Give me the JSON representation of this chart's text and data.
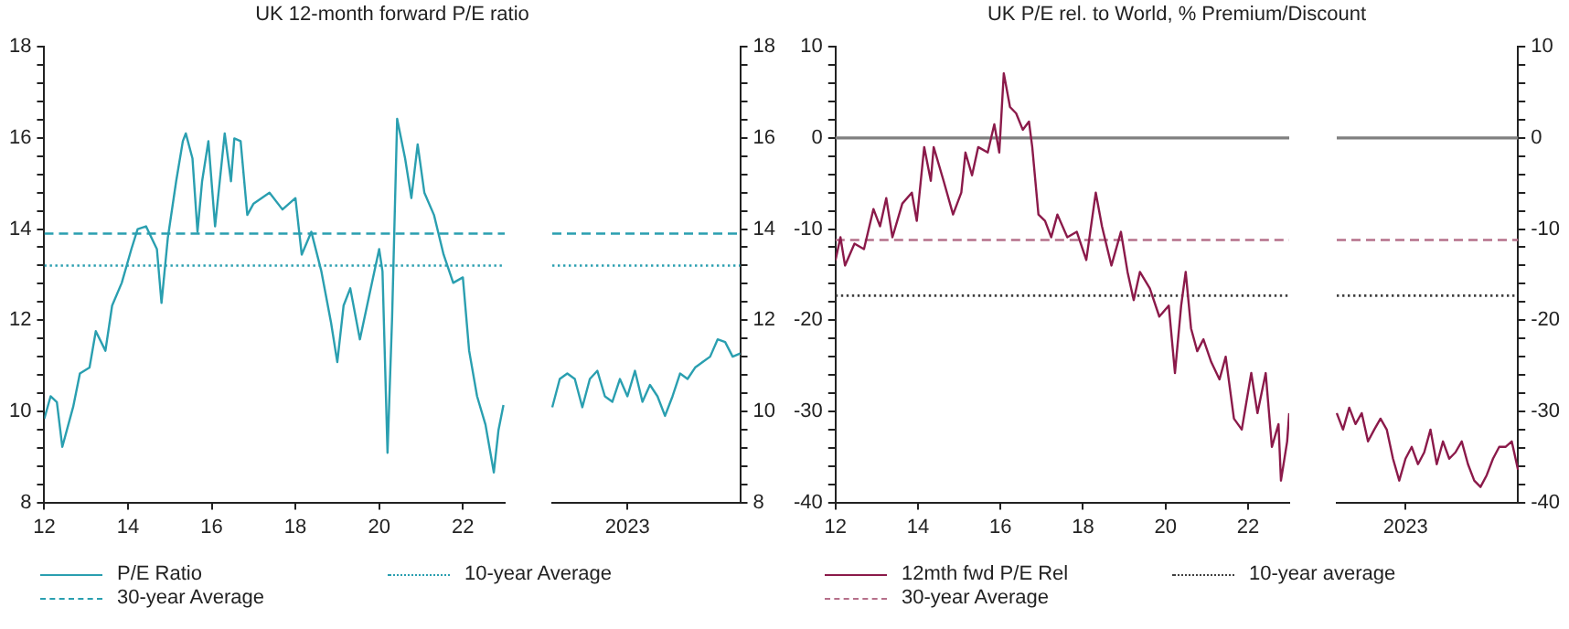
{
  "chart_data": [
    {
      "type": "line",
      "title": "UK 12-month forward P/E ratio",
      "legend": "bottom",
      "xlim": [
        2012,
        2023
      ],
      "xticks": [
        {
          "value": 2012,
          "label": "12"
        },
        {
          "value": 2014,
          "label": "14"
        },
        {
          "value": 2016,
          "label": "16"
        },
        {
          "value": 2018,
          "label": "18"
        },
        {
          "value": 2020,
          "label": "20"
        },
        {
          "value": 2022,
          "label": "22"
        }
      ],
      "ylim": [
        8,
        18
      ],
      "yticks": [
        8,
        {
          "value": 8.4,
          "label": null
        },
        {
          "value": 8.8,
          "label": null
        },
        {
          "value": 9.2,
          "label": null
        },
        {
          "value": 9.6,
          "label": null
        },
        10,
        {
          "value": 10.4,
          "label": null
        },
        {
          "value": 10.8,
          "label": null
        },
        {
          "value": 11.2,
          "label": null
        },
        {
          "value": 11.6,
          "label": null
        },
        12,
        {
          "value": 12.4,
          "label": null
        },
        {
          "value": 12.8,
          "label": null
        },
        {
          "value": 13.2,
          "label": null
        },
        {
          "value": 13.6,
          "label": null
        },
        14,
        {
          "value": 14.4,
          "label": null
        },
        {
          "value": 14.8,
          "label": null
        },
        {
          "value": 15.2,
          "label": null
        },
        {
          "value": 15.6,
          "label": null
        },
        16,
        {
          "value": 16.4,
          "label": null
        },
        {
          "value": 16.8,
          "label": null
        },
        {
          "value": 17.2,
          "label": null
        },
        {
          "value": 17.6,
          "label": null
        },
        18
      ],
      "series": [
        {
          "name": "P/E Ratio",
          "color": "#2a9fb0",
          "line_style": "solid",
          "x": [
            2012.0,
            2012.15,
            2012.3,
            2012.43,
            2012.69,
            2012.85,
            2013.08,
            2013.23,
            2013.46,
            2013.62,
            2013.85,
            2014.08,
            2014.23,
            2014.43,
            2014.69,
            2014.8,
            2014.95,
            2015.15,
            2015.31,
            2015.38,
            2015.54,
            2015.66,
            2015.77,
            2015.92,
            2016.08,
            2016.31,
            2016.46,
            2016.54,
            2016.69,
            2016.85,
            2017.0,
            2017.38,
            2017.69,
            2018.0,
            2018.15,
            2018.38,
            2018.62,
            2018.85,
            2019.0,
            2019.15,
            2019.31,
            2019.54,
            2019.77,
            2020.0,
            2020.08,
            2020.2,
            2020.31,
            2020.43,
            2020.62,
            2020.77,
            2020.92,
            2021.08,
            2021.31,
            2021.54,
            2021.77,
            2022.0,
            2022.15,
            2022.34,
            2022.54,
            2022.74,
            2022.85,
            2022.97
          ],
          "values": [
            9.84,
            10.33,
            10.2,
            9.22,
            10.1,
            10.83,
            10.96,
            11.76,
            11.33,
            12.32,
            12.82,
            13.56,
            14.0,
            14.06,
            13.56,
            12.38,
            13.8,
            15.05,
            15.93,
            16.1,
            15.55,
            13.94,
            15.05,
            15.93,
            14.06,
            16.1,
            15.05,
            15.99,
            15.93,
            14.31,
            14.56,
            14.8,
            14.43,
            14.68,
            13.44,
            13.94,
            13.07,
            11.95,
            11.08,
            12.32,
            12.7,
            11.58,
            12.57,
            13.56,
            13.07,
            9.09,
            12.07,
            16.42,
            15.55,
            14.68,
            15.86,
            14.8,
            14.31,
            13.44,
            12.82,
            12.94,
            11.33,
            10.33,
            9.71,
            8.66,
            9.58,
            10.14
          ]
        },
        {
          "name": "10-year Average",
          "color": "#2a9fb0",
          "line_style": "dotted",
          "x": [
            2012,
            2023
          ],
          "values": [
            13.2,
            13.2
          ]
        },
        {
          "name": "30-year Average",
          "color": "#2a9fb0",
          "line_style": "dashed",
          "x": [
            2012,
            2023
          ],
          "values": [
            13.9,
            13.9
          ]
        }
      ]
    },
    {
      "type": "line",
      "categories": [
        null,
        null,
        null,
        null,
        null,
        null,
        null,
        null,
        null,
        null,
        "2023",
        null,
        null,
        null,
        null,
        null,
        null,
        null,
        null,
        null,
        null,
        null,
        null,
        null,
        null,
        null
      ],
      "ylim": [
        8,
        18
      ],
      "yticks": [
        8,
        {
          "value": 8.4,
          "label": null
        },
        {
          "value": 8.8,
          "label": null
        },
        {
          "value": 9.2,
          "label": null
        },
        {
          "value": 9.6,
          "label": null
        },
        10,
        {
          "value": 10.4,
          "label": null
        },
        {
          "value": 10.8,
          "label": null
        },
        {
          "value": 11.2,
          "label": null
        },
        {
          "value": 11.6,
          "label": null
        },
        12,
        {
          "value": 12.4,
          "label": null
        },
        {
          "value": 12.8,
          "label": null
        },
        {
          "value": 13.2,
          "label": null
        },
        {
          "value": 13.6,
          "label": null
        },
        14,
        {
          "value": 14.4,
          "label": null
        },
        {
          "value": 14.8,
          "label": null
        },
        {
          "value": 15.2,
          "label": null
        },
        {
          "value": 15.6,
          "label": null
        },
        16,
        {
          "value": 16.4,
          "label": null
        },
        {
          "value": 16.8,
          "label": null
        },
        {
          "value": 17.2,
          "label": null
        },
        {
          "value": 17.6,
          "label": null
        },
        18
      ],
      "series": [
        {
          "color": "#2a9fb0",
          "line_style": "solid",
          "values": [
            10.09,
            10.71,
            10.83,
            10.71,
            10.09,
            10.71,
            10.89,
            10.33,
            10.21,
            10.71,
            10.33,
            10.89,
            10.21,
            10.58,
            10.33,
            9.9,
            10.33,
            10.83,
            10.71,
            10.96,
            11.08,
            11.2,
            11.58,
            11.52,
            11.2,
            11.27
          ]
        },
        {
          "color": "#2a9fb0",
          "line_style": "dotted",
          "values": [
            13.2,
            13.2,
            13.2,
            13.2,
            13.2,
            13.2,
            13.2,
            13.2,
            13.2,
            13.2,
            13.2,
            13.2,
            13.2,
            13.2,
            13.2,
            13.2,
            13.2,
            13.2,
            13.2,
            13.2,
            13.2,
            13.2,
            13.2,
            13.2,
            13.2,
            13.2
          ]
        },
        {
          "color": "#2a9fb0",
          "line_style": "dashed",
          "values": [
            13.9,
            13.9,
            13.9,
            13.9,
            13.9,
            13.9,
            13.9,
            13.9,
            13.9,
            13.9,
            13.9,
            13.9,
            13.9,
            13.9,
            13.9,
            13.9,
            13.9,
            13.9,
            13.9,
            13.9,
            13.9,
            13.9,
            13.9,
            13.9,
            13.9,
            13.9
          ]
        }
      ]
    },
    {
      "type": "line",
      "title": "UK P/E rel. to World, % Premium/Discount",
      "legend": "bottom",
      "xlim": [
        2012,
        2023
      ],
      "xticks": [
        {
          "value": 2012,
          "label": "12"
        },
        {
          "value": 2014,
          "label": "14"
        },
        {
          "value": 2016,
          "label": "16"
        },
        {
          "value": 2018,
          "label": "18"
        },
        {
          "value": 2020,
          "label": "20"
        },
        {
          "value": 2022,
          "label": "22"
        }
      ],
      "ylim": [
        -40,
        10
      ],
      "yticks": [
        -40,
        {
          "value": -38,
          "label": null
        },
        {
          "value": -36,
          "label": null
        },
        {
          "value": -34,
          "label": null
        },
        {
          "value": -32,
          "label": null
        },
        -30,
        {
          "value": -28,
          "label": null
        },
        {
          "value": -26,
          "label": null
        },
        {
          "value": -24,
          "label": null
        },
        {
          "value": -22,
          "label": null
        },
        -20,
        {
          "value": -18,
          "label": null
        },
        {
          "value": -16,
          "label": null
        },
        {
          "value": -14,
          "label": null
        },
        {
          "value": -12,
          "label": null
        },
        -10,
        {
          "value": -8,
          "label": null
        },
        {
          "value": -6,
          "label": null
        },
        {
          "value": -4,
          "label": null
        },
        {
          "value": -2,
          "label": null
        },
        0,
        {
          "value": 2,
          "label": null
        },
        {
          "value": 4,
          "label": null
        },
        {
          "value": 6,
          "label": null
        },
        {
          "value": 8,
          "label": null
        },
        10
      ],
      "ref_lines": [
        {
          "axis": "y",
          "value": 0,
          "color": "#7f7f7f",
          "line_style": "solid"
        }
      ],
      "series": [
        {
          "name": "12mth fwd P/E Rel",
          "color": "#8b1a4a",
          "line_style": "solid",
          "x": [
            2012.0,
            2012.12,
            2012.23,
            2012.46,
            2012.69,
            2012.92,
            2013.08,
            2013.23,
            2013.38,
            2013.62,
            2013.85,
            2013.97,
            2014.15,
            2014.31,
            2014.38,
            2014.62,
            2014.85,
            2015.05,
            2015.15,
            2015.31,
            2015.46,
            2015.69,
            2015.85,
            2015.97,
            2016.08,
            2016.23,
            2016.38,
            2016.54,
            2016.69,
            2016.77,
            2016.92,
            2017.08,
            2017.23,
            2017.38,
            2017.62,
            2017.85,
            2018.08,
            2018.31,
            2018.46,
            2018.69,
            2018.92,
            2019.08,
            2019.23,
            2019.38,
            2019.62,
            2019.85,
            2020.08,
            2020.23,
            2020.38,
            2020.49,
            2020.62,
            2020.77,
            2020.92,
            2021.11,
            2021.31,
            2021.46,
            2021.66,
            2021.85,
            2022.08,
            2022.23,
            2022.43,
            2022.58,
            2022.74,
            2022.8,
            2022.95,
            2023.0
          ],
          "values": [
            -13.4,
            -10.9,
            -14.0,
            -11.6,
            -12.2,
            -7.8,
            -9.7,
            -6.6,
            -10.9,
            -7.2,
            -6.0,
            -9.1,
            -1.0,
            -4.7,
            -1.0,
            -4.7,
            -8.4,
            -6.0,
            -1.6,
            -4.1,
            -1.0,
            -1.6,
            1.5,
            -1.6,
            7.1,
            3.4,
            2.7,
            0.9,
            1.8,
            -1.0,
            -8.4,
            -9.1,
            -10.9,
            -8.4,
            -10.9,
            -10.3,
            -13.4,
            -6.0,
            -9.7,
            -14.0,
            -10.3,
            -14.7,
            -17.8,
            -14.7,
            -16.5,
            -19.6,
            -18.4,
            -25.8,
            -18.4,
            -14.7,
            -20.9,
            -23.4,
            -22.1,
            -24.6,
            -26.5,
            -24.0,
            -30.8,
            -32.0,
            -25.8,
            -30.2,
            -25.8,
            -33.9,
            -31.4,
            -37.6,
            -33.3,
            -30.2
          ]
        },
        {
          "name": "10-year average",
          "color": "#404040",
          "line_style": "dotted",
          "x": [
            2012,
            2023
          ],
          "values": [
            -17.3,
            -17.3
          ]
        },
        {
          "name": "30-year Average",
          "color": "#b5708a",
          "line_style": "dashed",
          "x": [
            2012,
            2023
          ],
          "values": [
            -11.2,
            -11.2
          ]
        }
      ]
    },
    {
      "type": "line",
      "categories": [
        null,
        null,
        null,
        null,
        null,
        null,
        null,
        null,
        null,
        null,
        null,
        "2023",
        null,
        null,
        null,
        null,
        null,
        null,
        null,
        null,
        null,
        null,
        null,
        null,
        null,
        null,
        null,
        null,
        null,
        null
      ],
      "ylim": [
        -40,
        10
      ],
      "yticks": [
        -40,
        {
          "value": -38,
          "label": null
        },
        {
          "value": -36,
          "label": null
        },
        {
          "value": -34,
          "label": null
        },
        {
          "value": -32,
          "label": null
        },
        -30,
        {
          "value": -28,
          "label": null
        },
        {
          "value": -26,
          "label": null
        },
        {
          "value": -24,
          "label": null
        },
        {
          "value": -22,
          "label": null
        },
        -20,
        {
          "value": -18,
          "label": null
        },
        {
          "value": -16,
          "label": null
        },
        {
          "value": -14,
          "label": null
        },
        {
          "value": -12,
          "label": null
        },
        -10,
        {
          "value": -8,
          "label": null
        },
        {
          "value": -6,
          "label": null
        },
        {
          "value": -4,
          "label": null
        },
        {
          "value": -2,
          "label": null
        },
        0,
        {
          "value": 2,
          "label": null
        },
        {
          "value": 4,
          "label": null
        },
        {
          "value": 6,
          "label": null
        },
        {
          "value": 8,
          "label": null
        },
        10
      ],
      "ref_lines": [
        {
          "axis": "y",
          "value": 0,
          "color": "#7f7f7f",
          "line_style": "solid"
        }
      ],
      "series": [
        {
          "color": "#8b1a4a",
          "line_style": "solid",
          "values": [
            -30.2,
            -32.0,
            -29.6,
            -31.4,
            -30.2,
            -33.3,
            -32.0,
            -30.8,
            -32.0,
            -35.2,
            -37.6,
            -35.2,
            -33.9,
            -35.8,
            -34.5,
            -32.0,
            -35.8,
            -33.3,
            -35.2,
            -34.5,
            -33.3,
            -35.8,
            -37.6,
            -38.3,
            -37.0,
            -35.2,
            -33.9,
            -33.9,
            -33.3,
            -36.4
          ]
        },
        {
          "color": "#404040",
          "line_style": "dotted",
          "values": [
            -17.3,
            -17.3,
            -17.3,
            -17.3,
            -17.3,
            -17.3,
            -17.3,
            -17.3,
            -17.3,
            -17.3,
            -17.3,
            -17.3,
            -17.3,
            -17.3,
            -17.3,
            -17.3,
            -17.3,
            -17.3,
            -17.3,
            -17.3,
            -17.3,
            -17.3,
            -17.3,
            -17.3,
            -17.3,
            -17.3,
            -17.3,
            -17.3,
            -17.3,
            -17.3
          ]
        },
        {
          "color": "#b5708a",
          "line_style": "dashed",
          "values": [
            -11.2,
            -11.2,
            -11.2,
            -11.2,
            -11.2,
            -11.2,
            -11.2,
            -11.2,
            -11.2,
            -11.2,
            -11.2,
            -11.2,
            -11.2,
            -11.2,
            -11.2,
            -11.2,
            -11.2,
            -11.2,
            -11.2,
            -11.2,
            -11.2,
            -11.2,
            -11.2,
            -11.2,
            -11.2,
            -11.2,
            -11.2,
            -11.2,
            -11.2,
            -11.2
          ]
        }
      ]
    }
  ]
}
